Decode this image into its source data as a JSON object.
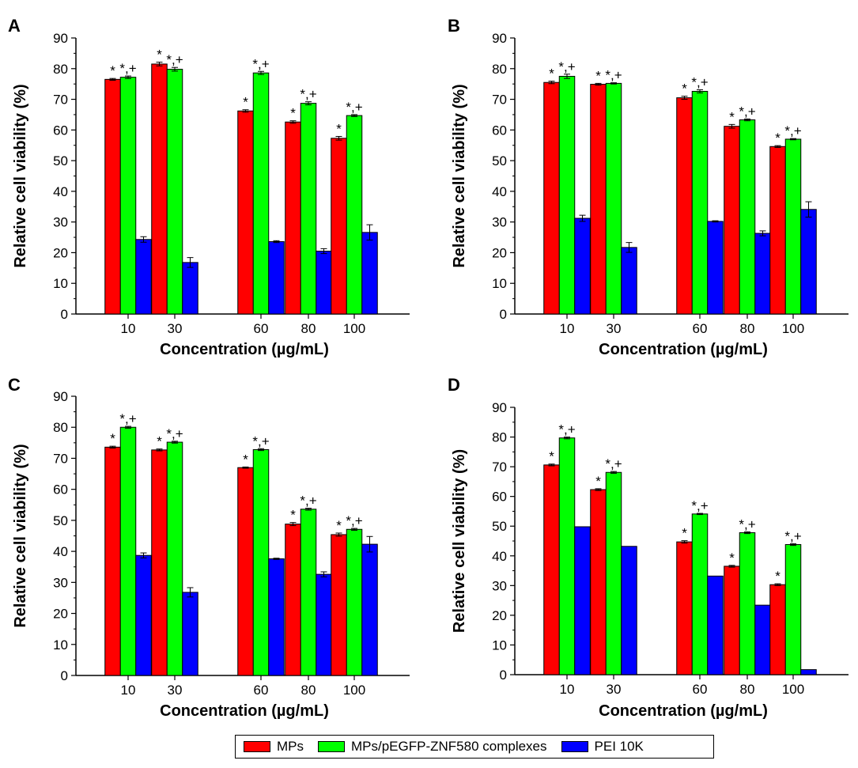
{
  "legend": {
    "items": [
      {
        "label": "MPs",
        "color": "#ff0000"
      },
      {
        "label": "MPs/pEGFP-ZNF580 complexes",
        "color": "#00ff00"
      },
      {
        "label": "PEI 10K",
        "color": "#0000ff"
      }
    ]
  },
  "chart_data": [
    {
      "panel": "A",
      "type": "bar",
      "categories": [
        "10",
        "30",
        "60",
        "80",
        "100"
      ],
      "xlabel": "Concentration (µg/mL)",
      "ylabel": "Relative cell viability (%)",
      "ylim": [
        0,
        90
      ],
      "yticks": [
        0,
        10,
        20,
        30,
        40,
        50,
        60,
        70,
        80,
        90
      ],
      "series": [
        {
          "name": "MPs",
          "color": "#ff0000",
          "values": [
            76.5,
            81.5,
            66.2,
            62.6,
            57.3
          ],
          "errors": [
            0.3,
            0.6,
            0.4,
            0.4,
            0.6
          ],
          "annotations": [
            "*",
            "*",
            "*",
            "*",
            "*"
          ]
        },
        {
          "name": "MPs/pEGFP-ZNF580 complexes",
          "color": "#00ff00",
          "values": [
            77.2,
            79.8,
            78.6,
            68.7,
            64.7
          ],
          "errors": [
            0.4,
            0.6,
            0.5,
            0.5,
            0.3
          ],
          "annotations": [
            "*,+",
            "*,+",
            "*,+",
            "*,+",
            "*,+"
          ]
        },
        {
          "name": "PEI 10K",
          "color": "#0000ff",
          "values": [
            24.3,
            16.8,
            23.6,
            20.5,
            26.6
          ],
          "errors": [
            0.9,
            1.6,
            0.3,
            0.8,
            2.5
          ],
          "annotations": [
            "",
            "",
            "",
            "",
            ""
          ]
        }
      ]
    },
    {
      "panel": "B",
      "type": "bar",
      "categories": [
        "10",
        "30",
        "60",
        "80",
        "100"
      ],
      "xlabel": "Concentration (µg/mL)",
      "ylabel": "Relative cell viability (%)",
      "ylim": [
        0,
        90
      ],
      "yticks": [
        0,
        10,
        20,
        30,
        40,
        50,
        60,
        70,
        80,
        90
      ],
      "series": [
        {
          "name": "MPs",
          "color": "#ff0000",
          "values": [
            75.5,
            74.9,
            70.5,
            61.2,
            54.6
          ],
          "errors": [
            0.4,
            0.3,
            0.5,
            0.6,
            0.3
          ],
          "annotations": [
            "*",
            "*",
            "*",
            "*",
            "*"
          ]
        },
        {
          "name": "MPs/pEGFP-ZNF580 complexes",
          "color": "#00ff00",
          "values": [
            77.5,
            75.2,
            72.6,
            63.3,
            57.0
          ],
          "errors": [
            0.7,
            0.2,
            0.5,
            0.3,
            0.2
          ],
          "annotations": [
            "*,+",
            "*,+",
            "*,+",
            "*,+",
            "*,+"
          ]
        },
        {
          "name": "PEI 10K",
          "color": "#0000ff",
          "values": [
            31.2,
            21.7,
            30.2,
            26.3,
            34.1
          ],
          "errors": [
            1.0,
            1.6,
            0.2,
            0.8,
            2.5
          ],
          "annotations": [
            "",
            "",
            "",
            "",
            ""
          ]
        }
      ]
    },
    {
      "panel": "C",
      "type": "bar",
      "categories": [
        "10",
        "30",
        "60",
        "80",
        "100"
      ],
      "xlabel": "Concentration (µg/mL)",
      "ylabel": "Relative cell viability (%)",
      "ylim": [
        0,
        90
      ],
      "yticks": [
        0,
        10,
        20,
        30,
        40,
        50,
        60,
        70,
        80,
        90
      ],
      "series": [
        {
          "name": "MPs",
          "color": "#ff0000",
          "values": [
            73.6,
            72.7,
            67.0,
            48.8,
            45.4
          ],
          "errors": [
            0.3,
            0.3,
            0.2,
            0.5,
            0.5
          ],
          "annotations": [
            "*",
            "*",
            "*",
            "*",
            "*"
          ]
        },
        {
          "name": "MPs/pEGFP-ZNF580 complexes",
          "color": "#00ff00",
          "values": [
            80.0,
            75.2,
            72.8,
            53.6,
            47.1
          ],
          "errors": [
            0.3,
            0.3,
            0.3,
            0.3,
            0.3
          ],
          "annotations": [
            "*,+",
            "*,+",
            "*,+",
            "*,+",
            "*,+"
          ]
        },
        {
          "name": "PEI 10K",
          "color": "#0000ff",
          "values": [
            38.7,
            26.8,
            37.6,
            32.6,
            42.3
          ],
          "errors": [
            0.8,
            1.5,
            0.2,
            0.8,
            2.5
          ],
          "annotations": [
            "",
            "",
            "",
            "",
            ""
          ]
        }
      ]
    },
    {
      "panel": "D",
      "type": "bar",
      "categories": [
        "10",
        "30",
        "60",
        "80",
        "100"
      ],
      "xlabel": "Concentration (µg/mL)",
      "ylabel": "Relative cell viability (%)",
      "ylim": [
        0,
        90
      ],
      "yticks": [
        0,
        10,
        20,
        30,
        40,
        50,
        60,
        70,
        80,
        90
      ],
      "series": [
        {
          "name": "MPs",
          "color": "#ff0000",
          "values": [
            70.6,
            62.3,
            44.7,
            36.5,
            30.3
          ],
          "errors": [
            0.3,
            0.3,
            0.4,
            0.3,
            0.3
          ],
          "annotations": [
            "*",
            "*",
            "*",
            "*",
            "*"
          ]
        },
        {
          "name": "MPs/pEGFP-ZNF580 complexes",
          "color": "#00ff00",
          "values": [
            79.7,
            68.1,
            54.1,
            47.8,
            43.8
          ],
          "errors": [
            0.3,
            0.3,
            0.2,
            0.3,
            0.3
          ],
          "annotations": [
            "*,+",
            "*,+",
            "*,+",
            "*,+",
            "*,+"
          ]
        },
        {
          "name": "PEI 10K",
          "color": "#0000ff",
          "values": [
            49.8,
            43.2,
            33.2,
            23.4,
            1.7
          ],
          "errors": [
            0,
            0,
            0,
            0,
            0
          ],
          "annotations": [
            "",
            "",
            "",
            "",
            ""
          ]
        }
      ]
    }
  ]
}
